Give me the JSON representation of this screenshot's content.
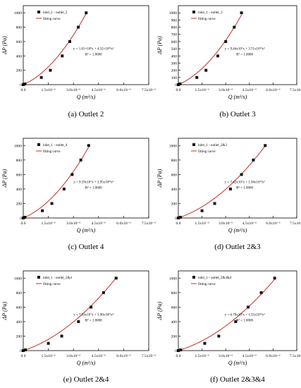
{
  "chart_data": [
    {
      "type": "scatter",
      "caption": "(a) Outlet 2",
      "legend": {
        "points": "inlet_1 - outlet_2",
        "curve": "fitting curve"
      },
      "equation": "y = 1.01×10⁸x + 4.32×10¹³x²",
      "r2": "R² = 1.0000",
      "xlabel": "Q (m³/s)",
      "ylabel": "ΔP (Pa)",
      "xlim": [
        0,
        7.5e-06
      ],
      "ylim": [
        0,
        1100
      ],
      "xticks": [
        0,
        1.5e-06,
        3e-06,
        4.5e-06,
        6e-06,
        7.5e-06
      ],
      "xtick_labels": [
        "0.0",
        "1.5x10⁻⁶",
        "3.0x10⁻⁶",
        "4.5x10⁻⁶",
        "6.0x10⁻⁶",
        "7.5x10⁻⁶"
      ],
      "yticks": [
        0,
        200,
        400,
        600,
        800,
        1000
      ],
      "ytick_labels": [
        "0",
        "200",
        "400",
        "600",
        "800",
        "1000"
      ],
      "a": 101000000.0,
      "b": 43200000000000.0,
      "x": [
        0.0,
        9.65e-08,
        1.08e-06,
        1.62e-06,
        2.33e-06,
        2.78e-06,
        3.29e-06,
        3.76e-06
      ],
      "y": [
        0,
        10,
        100,
        200,
        400,
        600,
        800,
        1000
      ]
    },
    {
      "type": "scatter",
      "caption": "(b) Outlet 3",
      "legend": {
        "points": "inlet_1 - outlet_3",
        "curve": "fitting curve"
      },
      "equation": "y = 9.44x10⁷x + 3.71x10¹³x²",
      "r2": "R² = 1.0000",
      "xlabel": "Q (m³/s)",
      "ylabel": "ΔP (Pa)",
      "xlim": [
        0,
        7.5e-06
      ],
      "ylim": [
        0,
        1100
      ],
      "xticks": [
        0,
        1.5e-06,
        3e-06,
        4.5e-06,
        6e-06,
        7.5e-06
      ],
      "xtick_labels": [
        "0.0",
        "1.5x10⁻⁶",
        "3.0x10⁻⁶",
        "4.5x10⁻⁶",
        "6.0x10⁻⁶",
        "7.5x10⁻⁶"
      ],
      "yticks": [
        0,
        100,
        200,
        300,
        400,
        500,
        600,
        700,
        800,
        900,
        1000
      ],
      "ytick_labels": [
        "0",
        "100",
        "200",
        "300",
        "400",
        "500",
        "600",
        "700",
        "800",
        "900",
        "1000"
      ],
      "a": 94400000.0,
      "b": 37100000000000.0,
      "x": [
        0.0,
        1.04e-07,
        1.17e-06,
        1.75e-06,
        2.5e-06,
        3e-06,
        3.54e-06,
        4e-06
      ],
      "y": [
        0,
        10,
        100,
        200,
        400,
        600,
        800,
        1000
      ]
    },
    {
      "type": "scatter",
      "caption": "(c) Outlet 4",
      "legend": {
        "points": "inlet_1 - outlet_4",
        "curve": "fitting curve"
      },
      "equation": "y = 9.59x10⁷x + 3.95x10¹³x²",
      "r2": "R² = 1.0000",
      "xlabel": "Q (m³/s)",
      "ylabel": "ΔP (Pa)",
      "xlim": [
        0,
        7.5e-06
      ],
      "ylim": [
        0,
        1100
      ],
      "xticks": [
        0,
        1.5e-06,
        3e-06,
        4.5e-06,
        6e-06,
        7.5e-06
      ],
      "xtick_labels": [
        "0.0",
        "1.5x10⁻⁶",
        "3.0x10⁻⁶",
        "4.5x10⁻⁶",
        "6.0x10⁻⁶",
        "7.5x10⁻⁶"
      ],
      "yticks": [
        0,
        200,
        400,
        600,
        800,
        1000
      ],
      "ytick_labels": [
        "0",
        "200",
        "400",
        "600",
        "800",
        "1000"
      ],
      "a": 95900000.0,
      "b": 39500000000000.0,
      "x": [
        0.0,
        1.02e-07,
        1.14e-06,
        1.71e-06,
        2.44e-06,
        2.92e-06,
        3.44e-06,
        3.91e-06
      ],
      "y": [
        0,
        10,
        100,
        200,
        400,
        600,
        800,
        1000
      ]
    },
    {
      "type": "scatter",
      "caption": "(d) Outlet 2&3",
      "legend": {
        "points": "inlet_1 - outlet_2&3",
        "curve": "fitting curve"
      },
      "equation": "y = 7.42x10⁷x + 1.94x10¹³x²",
      "r2": "R² = 1.0000",
      "xlabel": "Q (m³/s)",
      "ylabel": "ΔP (Pa)",
      "xlim": [
        0,
        7.5e-06
      ],
      "ylim": [
        0,
        1100
      ],
      "xticks": [
        0,
        1.5e-06,
        3e-06,
        4.5e-06,
        6e-06,
        7.5e-06
      ],
      "xtick_labels": [
        "0.0",
        "1.5x10⁻⁶",
        "3.0x10⁻⁶",
        "4.5x10⁻⁶",
        "6.0x10⁻⁶",
        "7.5x10⁻⁶"
      ],
      "yticks": [
        0,
        200,
        400,
        600,
        800,
        1000
      ],
      "ytick_labels": [
        "0",
        "200",
        "400",
        "600",
        "800",
        "1000"
      ],
      "a": 74200000.0,
      "b": 19400000000000.0,
      "x": [
        0.0,
        1.3e-07,
        1.5e-06,
        2.3e-06,
        3.3e-06,
        4e-06,
        4.75e-06,
        5.5e-06
      ],
      "y": [
        0,
        10,
        100,
        200,
        400,
        600,
        800,
        1000
      ]
    },
    {
      "type": "scatter",
      "caption": "(e) Outlet 2&4",
      "legend": {
        "points": "inlet_1 - outlet_2&4",
        "curve": "fitting curve"
      },
      "equation": "y = 7.54x10⁷x + 1.90x10¹³x²",
      "r2": "R² = 1.0000",
      "xlabel": "Q (m³/s)",
      "ylabel": "ΔP (Pa)",
      "xlim": [
        0,
        7.5e-06
      ],
      "ylim": [
        0,
        1100
      ],
      "xticks": [
        0,
        1.5e-06,
        3e-06,
        4.5e-06,
        6e-06,
        7.5e-06
      ],
      "xtick_labels": [
        "0.0",
        "1.5x10⁻⁶",
        "3.0x10⁻⁶",
        "4.5x10⁻⁶",
        "6.0x10⁻⁶",
        "7.5x10⁻⁶"
      ],
      "yticks": [
        0,
        200,
        400,
        600,
        800,
        1000
      ],
      "ytick_labels": [
        "0",
        "200",
        "400",
        "600",
        "800",
        "1000"
      ],
      "a": 75400000.0,
      "b": 19000000000000.0,
      "x": [
        0.0,
        1.3e-07,
        1.5e-06,
        2.3e-06,
        3.3e-06,
        4.05e-06,
        4.8e-06,
        5.55e-06
      ],
      "y": [
        0,
        10,
        100,
        200,
        400,
        600,
        800,
        1000
      ]
    },
    {
      "type": "scatter",
      "caption": "(f) Outlet 2&3&4",
      "legend": {
        "points": "inlet_1 - outlet_2&3&4",
        "curve": "fitting curve"
      },
      "equation": "y = 6.70x10⁷x + 1.55x10¹³x²",
      "r2": "R² = 1.0000",
      "xlabel": "Q (m³/s)",
      "ylabel": "ΔP (Pa)",
      "xlim": [
        0,
        7.5e-06
      ],
      "ylim": [
        0,
        1100
      ],
      "xticks": [
        0,
        1.5e-06,
        3e-06,
        4.5e-06,
        6e-06,
        7.5e-06
      ],
      "xtick_labels": [
        "0.0",
        "1.5x10⁻⁶",
        "3.0x10⁻⁶",
        "4.5x10⁻⁶",
        "6.0x10⁻⁶",
        "7.5x10⁻⁶"
      ],
      "yticks": [
        0,
        200,
        400,
        600,
        800,
        1000
      ],
      "ytick_labels": [
        "0",
        "200",
        "400",
        "600",
        "800",
        "1000"
      ],
      "a": 67000000.0,
      "b": 15500000000000.0,
      "x": [
        0.0,
        1.45e-07,
        1.67e-06,
        2.56e-06,
        3.63e-06,
        4.42e-06,
        5.25e-06,
        6.1e-06
      ],
      "y": [
        0,
        10,
        100,
        200,
        400,
        600,
        800,
        1000
      ]
    }
  ],
  "colors": {
    "curve": "#c0302a",
    "marker": "#111111",
    "axis": "#000000"
  }
}
